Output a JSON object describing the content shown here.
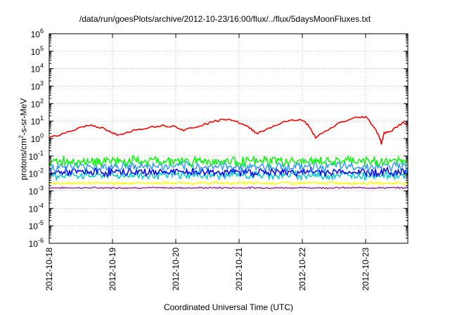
{
  "chart_data": {
    "type": "line",
    "title": "/data/run/goesPlots/archive/2012-10-23/16:00/flux/../flux/5daysMoonFluxes.txt",
    "xlabel": "Coordinated Universal Time (UTC)",
    "ylabel_parts": [
      "protons/cm",
      "2",
      "-s-sr-MeV"
    ],
    "y_scale": "log",
    "ylim": [
      1e-06,
      1000000.0
    ],
    "y_ticks": [
      {
        "base": "10",
        "exp": "-6",
        "value": -6
      },
      {
        "base": "10",
        "exp": "-5",
        "value": -5
      },
      {
        "base": "10",
        "exp": "-4",
        "value": -4
      },
      {
        "base": "10",
        "exp": "-3",
        "value": -3
      },
      {
        "base": "10",
        "exp": "-2",
        "value": -2
      },
      {
        "base": "10",
        "exp": "-1",
        "value": -1
      },
      {
        "base": "10",
        "exp": "0",
        "value": 0
      },
      {
        "base": "10",
        "exp": "1",
        "value": 1
      },
      {
        "base": "10",
        "exp": "2",
        "value": 2
      },
      {
        "base": "10",
        "exp": "3",
        "value": 3
      },
      {
        "base": "10",
        "exp": "4",
        "value": 4
      },
      {
        "base": "10",
        "exp": "5",
        "value": 5
      },
      {
        "base": "10",
        "exp": "6",
        "value": 6
      }
    ],
    "x_tick_labels": [
      "2012-10-18",
      "2012-10-19",
      "2012-10-20",
      "2012-10-21",
      "2012-10-22",
      "2012-10-23"
    ],
    "xlim": [
      "2012-10-18",
      "2012-10-23 16:00"
    ],
    "grid": true,
    "series": [
      {
        "color": "#ff0000",
        "values": [
          [
            "2012-10-18 00:00",
            1.2
          ],
          [
            "2012-10-18 06:00",
            2.0
          ],
          [
            "2012-10-18 12:00",
            4.5
          ],
          [
            "2012-10-18 16:00",
            6.0
          ],
          [
            "2012-10-18 20:00",
            4.0
          ],
          [
            "2012-10-19 00:00",
            2.0
          ],
          [
            "2012-10-19 02:00",
            1.5
          ],
          [
            "2012-10-19 06:00",
            2.5
          ],
          [
            "2012-10-19 12:00",
            4.0
          ],
          [
            "2012-10-19 18:00",
            5.5
          ],
          [
            "2012-10-20 00:00",
            5.0
          ],
          [
            "2012-10-20 03:00",
            3.0
          ],
          [
            "2012-10-20 08:00",
            5.0
          ],
          [
            "2012-10-20 14:00",
            9.0
          ],
          [
            "2012-10-20 20:00",
            14.0
          ],
          [
            "2012-10-21 00:00",
            8.0
          ],
          [
            "2012-10-21 04:00",
            4.0
          ],
          [
            "2012-10-21 07:00",
            2.0
          ],
          [
            "2012-10-21 12:00",
            4.5
          ],
          [
            "2012-10-21 18:00",
            10.0
          ],
          [
            "2012-10-22 00:00",
            12.0
          ],
          [
            "2012-10-22 02:00",
            6.0
          ],
          [
            "2012-10-22 05:00",
            1.2
          ],
          [
            "2012-10-22 09:00",
            2.5
          ],
          [
            "2012-10-22 14:00",
            8.0
          ],
          [
            "2012-10-22 20:00",
            15.0
          ],
          [
            "2012-10-23 00:00",
            18.0
          ],
          [
            "2012-10-23 03:00",
            5.0
          ],
          [
            "2012-10-23 05:00",
            1.5
          ],
          [
            "2012-10-23 06:00",
            0.5
          ],
          [
            "2012-10-23 07:00",
            2.0
          ],
          [
            "2012-10-23 10:00",
            3.0
          ],
          [
            "2012-10-23 14:00",
            8.0
          ],
          [
            "2012-10-23 16:00",
            6.0
          ]
        ]
      },
      {
        "color": "#00ff00",
        "level": 0.05,
        "spread": 1.6
      },
      {
        "color": "#3399ff",
        "level": 0.025,
        "spread": 1.6
      },
      {
        "color": "#0000ff",
        "level": 0.012,
        "spread": 1.5
      },
      {
        "color": "#00cccc",
        "level": 0.008,
        "spread": 1.5
      },
      {
        "color": "#ffff00",
        "level": 0.0028,
        "spread": 1.15
      },
      {
        "color": "#993399",
        "level": 0.0015,
        "spread": 1.08
      }
    ]
  }
}
